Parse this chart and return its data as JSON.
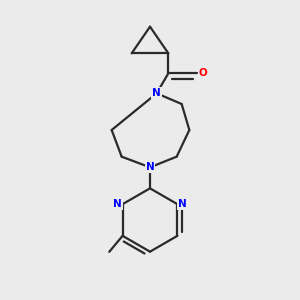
{
  "background_color": "#ebebeb",
  "bond_color": "#2a2a2a",
  "nitrogen_color": "#0000ff",
  "oxygen_color": "#ff0000",
  "line_width": 1.6,
  "figsize": [
    3.0,
    3.0
  ],
  "dpi": 100,
  "xlim": [
    0.15,
    0.85
  ],
  "ylim": [
    0.08,
    0.98
  ]
}
